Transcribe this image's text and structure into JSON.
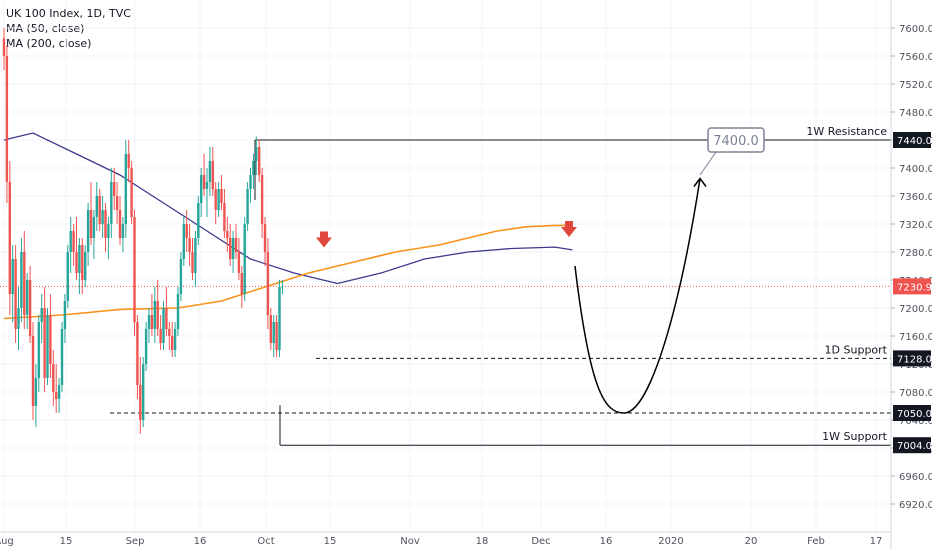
{
  "chart_data": {
    "type": "candlestick",
    "title": "UK 100 Index, 1D, TVC",
    "indicators": [
      {
        "name": "MA (50, close)",
        "color": "#3c3a8c"
      },
      {
        "name": "MA (200, close)",
        "color": "#f7931a"
      }
    ],
    "colors": {
      "up": "#26a69a",
      "down": "#ef5350",
      "grid": "#f0f3fa",
      "axis_text": "#50535e"
    },
    "y_axis": {
      "range": [
        6880,
        7640
      ],
      "ticks": [
        7600.0,
        7560.0,
        7520.0,
        7480.0,
        7440.0,
        7400.0,
        7360.0,
        7320.0,
        7280.0,
        7240.0,
        7200.0,
        7160.0,
        7120.0,
        7080.0,
        7040.0,
        7000.0,
        6960.0,
        6920.0
      ]
    },
    "x_axis": {
      "labels": [
        "Aug",
        "15",
        "Sep",
        "16",
        "Oct",
        "15",
        "Nov",
        "18",
        "Dec",
        "16",
        "2020",
        "20",
        "Feb",
        "17"
      ]
    },
    "last_price": {
      "label": "7230.9",
      "value": 7230.9,
      "color": "#ef5350"
    },
    "levels": [
      {
        "label": "1W Resistance",
        "value": 7440.0,
        "value_label": "7440.0",
        "style": "solid"
      },
      {
        "label": "1D Support",
        "value": 7128.0,
        "value_label": "7128.0",
        "style": "dashed"
      },
      {
        "label": "",
        "value": 7050.0,
        "value_label": "7050.0",
        "style": "dashed"
      },
      {
        "label": "1W Support",
        "value": 7004.0,
        "value_label": "7004.0",
        "style": "solid"
      }
    ],
    "target": {
      "label": "7400.0",
      "value": 7400.0
    },
    "candles": [
      [
        7585,
        7600,
        7540,
        7560
      ],
      [
        7560,
        7575,
        7350,
        7380
      ],
      [
        7380,
        7410,
        7190,
        7220
      ],
      [
        7220,
        7290,
        7180,
        7270
      ],
      [
        7270,
        7290,
        7150,
        7170
      ],
      [
        7170,
        7230,
        7140,
        7200
      ],
      [
        7200,
        7300,
        7180,
        7280
      ],
      [
        7280,
        7310,
        7170,
        7190
      ],
      [
        7190,
        7250,
        7170,
        7240
      ],
      [
        7240,
        7260,
        7150,
        7160
      ],
      [
        7160,
        7180,
        7040,
        7060
      ],
      [
        7060,
        7120,
        7030,
        7100
      ],
      [
        7100,
        7190,
        7080,
        7180
      ],
      [
        7180,
        7220,
        7150,
        7200
      ],
      [
        7200,
        7230,
        7080,
        7100
      ],
      [
        7100,
        7200,
        7090,
        7190
      ],
      [
        7190,
        7220,
        7100,
        7120
      ],
      [
        7120,
        7140,
        7060,
        7080
      ],
      [
        7080,
        7120,
        7050,
        7070
      ],
      [
        7070,
        7100,
        7050,
        7090
      ],
      [
        7090,
        7180,
        7080,
        7170
      ],
      [
        7170,
        7220,
        7150,
        7210
      ],
      [
        7210,
        7290,
        7200,
        7280
      ],
      [
        7280,
        7330,
        7250,
        7310
      ],
      [
        7310,
        7320,
        7260,
        7280
      ],
      [
        7280,
        7330,
        7240,
        7250
      ],
      [
        7250,
        7300,
        7220,
        7290
      ],
      [
        7290,
        7300,
        7220,
        7240
      ],
      [
        7240,
        7290,
        7230,
        7280
      ],
      [
        7280,
        7350,
        7260,
        7340
      ],
      [
        7340,
        7380,
        7290,
        7300
      ],
      [
        7300,
        7340,
        7270,
        7330
      ],
      [
        7330,
        7380,
        7310,
        7360
      ],
      [
        7360,
        7370,
        7310,
        7320
      ],
      [
        7320,
        7360,
        7300,
        7340
      ],
      [
        7340,
        7350,
        7280,
        7300
      ],
      [
        7300,
        7330,
        7270,
        7320
      ],
      [
        7320,
        7400,
        7300,
        7380
      ],
      [
        7380,
        7400,
        7340,
        7360
      ],
      [
        7360,
        7380,
        7320,
        7340
      ],
      [
        7340,
        7360,
        7290,
        7300
      ],
      [
        7300,
        7330,
        7280,
        7320
      ],
      [
        7320,
        7440,
        7300,
        7420
      ],
      [
        7420,
        7440,
        7380,
        7400
      ],
      [
        7400,
        7410,
        7320,
        7330
      ],
      [
        7330,
        7340,
        7160,
        7180
      ],
      [
        7180,
        7190,
        7070,
        7090
      ],
      [
        7090,
        7130,
        7020,
        7040
      ],
      [
        7040,
        7130,
        7030,
        7120
      ],
      [
        7120,
        7180,
        7110,
        7170
      ],
      [
        7170,
        7200,
        7150,
        7190
      ],
      [
        7190,
        7220,
        7160,
        7170
      ],
      [
        7170,
        7230,
        7150,
        7210
      ],
      [
        7210,
        7240,
        7160,
        7170
      ],
      [
        7170,
        7190,
        7140,
        7150
      ],
      [
        7150,
        7210,
        7140,
        7200
      ],
      [
        7200,
        7230,
        7160,
        7170
      ],
      [
        7170,
        7180,
        7140,
        7160
      ],
      [
        7160,
        7180,
        7130,
        7140
      ],
      [
        7140,
        7180,
        7130,
        7170
      ],
      [
        7170,
        7230,
        7160,
        7220
      ],
      [
        7220,
        7280,
        7210,
        7270
      ],
      [
        7270,
        7330,
        7260,
        7320
      ],
      [
        7320,
        7340,
        7280,
        7300
      ],
      [
        7300,
        7320,
        7260,
        7280
      ],
      [
        7280,
        7300,
        7240,
        7250
      ],
      [
        7250,
        7310,
        7230,
        7300
      ],
      [
        7300,
        7360,
        7290,
        7350
      ],
      [
        7350,
        7400,
        7330,
        7390
      ],
      [
        7390,
        7420,
        7360,
        7370
      ],
      [
        7370,
        7400,
        7330,
        7380
      ],
      [
        7380,
        7430,
        7360,
        7410
      ],
      [
        7410,
        7430,
        7360,
        7370
      ],
      [
        7370,
        7380,
        7320,
        7340
      ],
      [
        7340,
        7380,
        7330,
        7370
      ],
      [
        7370,
        7390,
        7340,
        7350
      ],
      [
        7350,
        7370,
        7300,
        7310
      ],
      [
        7310,
        7330,
        7280,
        7300
      ],
      [
        7300,
        7320,
        7260,
        7270
      ],
      [
        7270,
        7310,
        7250,
        7300
      ],
      [
        7300,
        7320,
        7270,
        7280
      ],
      [
        7280,
        7300,
        7240,
        7250
      ],
      [
        7250,
        7260,
        7200,
        7220
      ],
      [
        7220,
        7330,
        7210,
        7320
      ],
      [
        7320,
        7380,
        7310,
        7370
      ],
      [
        7370,
        7400,
        7350,
        7390
      ],
      [
        7390,
        7420,
        7370,
        7410
      ],
      [
        7410,
        7445,
        7390,
        7430
      ],
      [
        7430,
        7440,
        7380,
        7390
      ],
      [
        7390,
        7400,
        7300,
        7320
      ],
      [
        7320,
        7330,
        7260,
        7280
      ],
      [
        7280,
        7300,
        7170,
        7190
      ],
      [
        7190,
        7200,
        7140,
        7150
      ],
      [
        7150,
        7190,
        7130,
        7180
      ],
      [
        7180,
        7190,
        7130,
        7140
      ],
      [
        7140,
        7240,
        7130,
        7230
      ],
      [
        7230,
        7240,
        7220,
        7231
      ]
    ],
    "ma50": [
      [
        0,
        7440
      ],
      [
        10,
        7450
      ],
      [
        25,
        7420
      ],
      [
        40,
        7390
      ],
      [
        55,
        7350
      ],
      [
        70,
        7310
      ],
      [
        85,
        7270
      ],
      [
        100,
        7250
      ],
      [
        115,
        7235
      ],
      [
        130,
        7250
      ],
      [
        145,
        7270
      ],
      [
        160,
        7280
      ],
      [
        175,
        7285
      ],
      [
        190,
        7287
      ],
      [
        196,
        7283
      ]
    ],
    "ma200": [
      [
        0,
        7185
      ],
      [
        20,
        7190
      ],
      [
        40,
        7198
      ],
      [
        60,
        7200
      ],
      [
        75,
        7210
      ],
      [
        90,
        7230
      ],
      [
        105,
        7250
      ],
      [
        120,
        7265
      ],
      [
        135,
        7280
      ],
      [
        150,
        7290
      ],
      [
        160,
        7300
      ],
      [
        170,
        7310
      ],
      [
        180,
        7316
      ],
      [
        190,
        7318
      ],
      [
        196,
        7318
      ]
    ]
  }
}
